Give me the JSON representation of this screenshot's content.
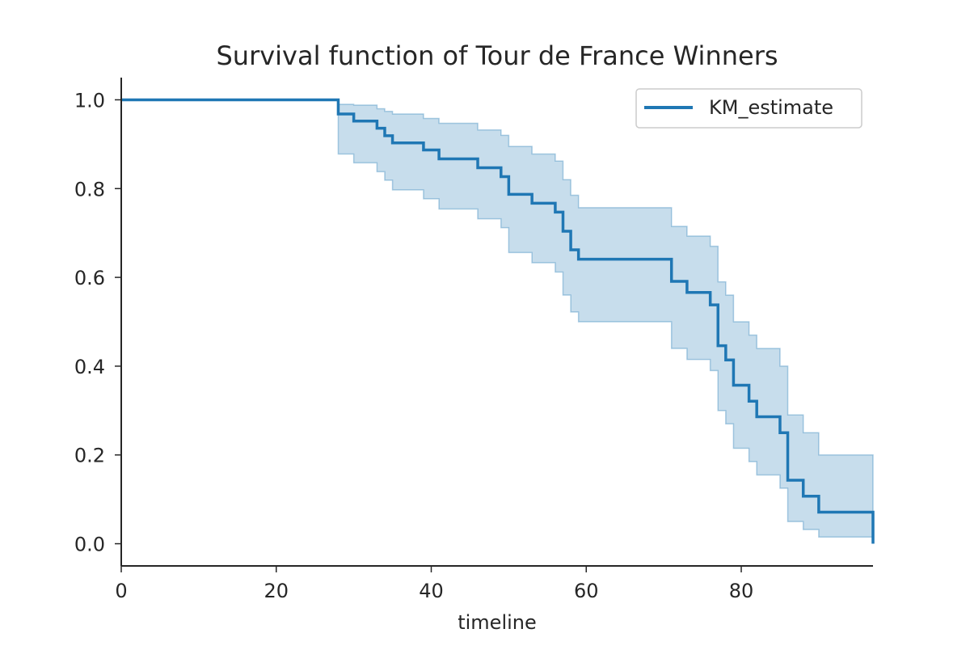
{
  "chart_data": {
    "type": "line",
    "title": "Survival function of Tour de France Winners",
    "xlabel": "timeline",
    "ylabel": "",
    "xlim": [
      0,
      97
    ],
    "ylim": [
      -0.05,
      1.05
    ],
    "xticks": [
      "0",
      "20",
      "40",
      "60",
      "80"
    ],
    "xtick_values": [
      0,
      20,
      40,
      60,
      80
    ],
    "yticks": [
      "0.0",
      "0.2",
      "0.4",
      "0.6",
      "0.8",
      "1.0"
    ],
    "ytick_values": [
      0.0,
      0.2,
      0.4,
      0.6,
      0.8,
      1.0
    ],
    "grid": false,
    "legend_position": "top-right",
    "series": [
      {
        "name": "KM_estimate",
        "color": "#1f77b4",
        "band_color": "#1f77b4",
        "x": [
          0,
          28,
          30,
          33,
          34,
          35,
          39,
          41,
          46,
          49,
          50,
          53,
          56,
          57,
          58,
          59,
          71,
          73,
          76,
          77,
          78,
          79,
          81,
          82,
          85,
          86,
          88,
          90,
          97
        ],
        "y": [
          1.0,
          0.968,
          0.952,
          0.936,
          0.919,
          0.903,
          0.887,
          0.867,
          0.847,
          0.827,
          0.787,
          0.767,
          0.747,
          0.704,
          0.662,
          0.641,
          0.591,
          0.566,
          0.538,
          0.446,
          0.414,
          0.357,
          0.321,
          0.286,
          0.25,
          0.143,
          0.107,
          0.071,
          0.0
        ],
        "ci_lower": [
          1.0,
          0.878,
          0.858,
          0.838,
          0.819,
          0.797,
          0.777,
          0.754,
          0.732,
          0.712,
          0.656,
          0.633,
          0.612,
          0.56,
          0.522,
          0.5,
          0.44,
          0.415,
          0.39,
          0.3,
          0.27,
          0.215,
          0.185,
          0.155,
          0.125,
          0.05,
          0.032,
          0.015,
          0.015
        ],
        "ci_upper": [
          1.0,
          0.99,
          0.988,
          0.98,
          0.974,
          0.968,
          0.958,
          0.947,
          0.932,
          0.92,
          0.895,
          0.878,
          0.862,
          0.82,
          0.785,
          0.757,
          0.715,
          0.693,
          0.67,
          0.59,
          0.56,
          0.5,
          0.47,
          0.44,
          0.4,
          0.29,
          0.25,
          0.2,
          0.2
        ]
      }
    ]
  }
}
